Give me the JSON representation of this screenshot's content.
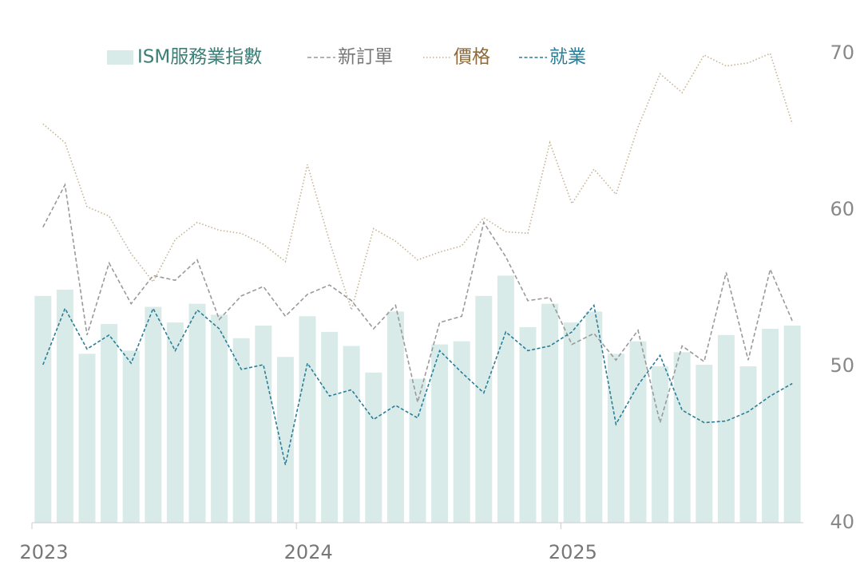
{
  "chart_data": {
    "type": "bar-line",
    "categories": [
      "2023",
      null,
      null,
      null,
      null,
      null,
      null,
      null,
      null,
      null,
      null,
      null,
      "2024",
      null,
      null,
      null,
      null,
      null,
      null,
      null,
      null,
      null,
      null,
      null,
      "2025",
      null,
      null,
      null,
      null,
      null,
      null,
      null,
      null,
      null,
      null
    ],
    "series": [
      {
        "name": "ISM服務業指數",
        "type": "bar",
        "color": "#d9ebe8",
        "label_color": "#3d7f76",
        "values": [
          54.5,
          54.9,
          50.8,
          52.7,
          51.0,
          53.8,
          52.8,
          54.0,
          53.3,
          51.8,
          52.6,
          50.6,
          53.2,
          52.2,
          51.3,
          49.6,
          53.5,
          49.2,
          51.4,
          51.6,
          54.5,
          55.8,
          52.5,
          54.0,
          52.8,
          53.5,
          50.8,
          51.6,
          50.0,
          50.9,
          50.1,
          52.0,
          50.0,
          52.4,
          52.6
        ]
      },
      {
        "name": "新訂單",
        "type": "line",
        "dash": "5,3",
        "color": "#9a9a9a",
        "label_color": "#777777",
        "values": [
          58.9,
          61.6,
          52.0,
          56.6,
          54.0,
          55.8,
          55.5,
          56.8,
          53.0,
          54.5,
          55.1,
          53.2,
          54.6,
          55.2,
          54.2,
          52.4,
          53.9,
          47.7,
          52.8,
          53.2,
          59.2,
          57.0,
          54.2,
          54.4,
          51.4,
          52.1,
          50.4,
          52.3,
          46.4,
          51.3,
          50.3,
          56.0,
          50.4,
          56.2,
          52.9
        ]
      },
      {
        "name": "價格",
        "type": "line",
        "dash": "1.5,2.5",
        "color": "#c4b494",
        "label_color": "#8c6a3c",
        "values": [
          65.5,
          64.3,
          60.2,
          59.6,
          57.2,
          55.4,
          58.1,
          59.2,
          58.7,
          58.5,
          57.8,
          56.7,
          62.9,
          58.0,
          53.6,
          58.8,
          58.0,
          56.8,
          57.3,
          57.7,
          59.5,
          58.6,
          58.5,
          64.3,
          60.4,
          62.6,
          61.0,
          65.3,
          68.7,
          67.5,
          69.9,
          69.2,
          69.4,
          70.0,
          65.5
        ]
      },
      {
        "name": "就業",
        "type": "line",
        "dash": "4,2.5",
        "color": "#2b7d98",
        "label_color": "#2b7d98",
        "values": [
          50.1,
          53.7,
          51.1,
          52.0,
          50.2,
          53.7,
          51.0,
          53.6,
          52.4,
          49.8,
          50.1,
          43.7,
          50.2,
          48.1,
          48.5,
          46.6,
          47.5,
          46.7,
          51.0,
          49.6,
          48.3,
          52.2,
          51.0,
          51.3,
          52.2,
          53.9,
          46.3,
          48.8,
          50.7,
          47.2,
          46.4,
          46.5,
          47.1,
          48.1,
          48.9
        ]
      }
    ],
    "ylim": [
      40,
      70
    ],
    "yticks": [
      40,
      50,
      60,
      70
    ],
    "y_axis_side": "right",
    "grid": false,
    "legend": "top"
  }
}
